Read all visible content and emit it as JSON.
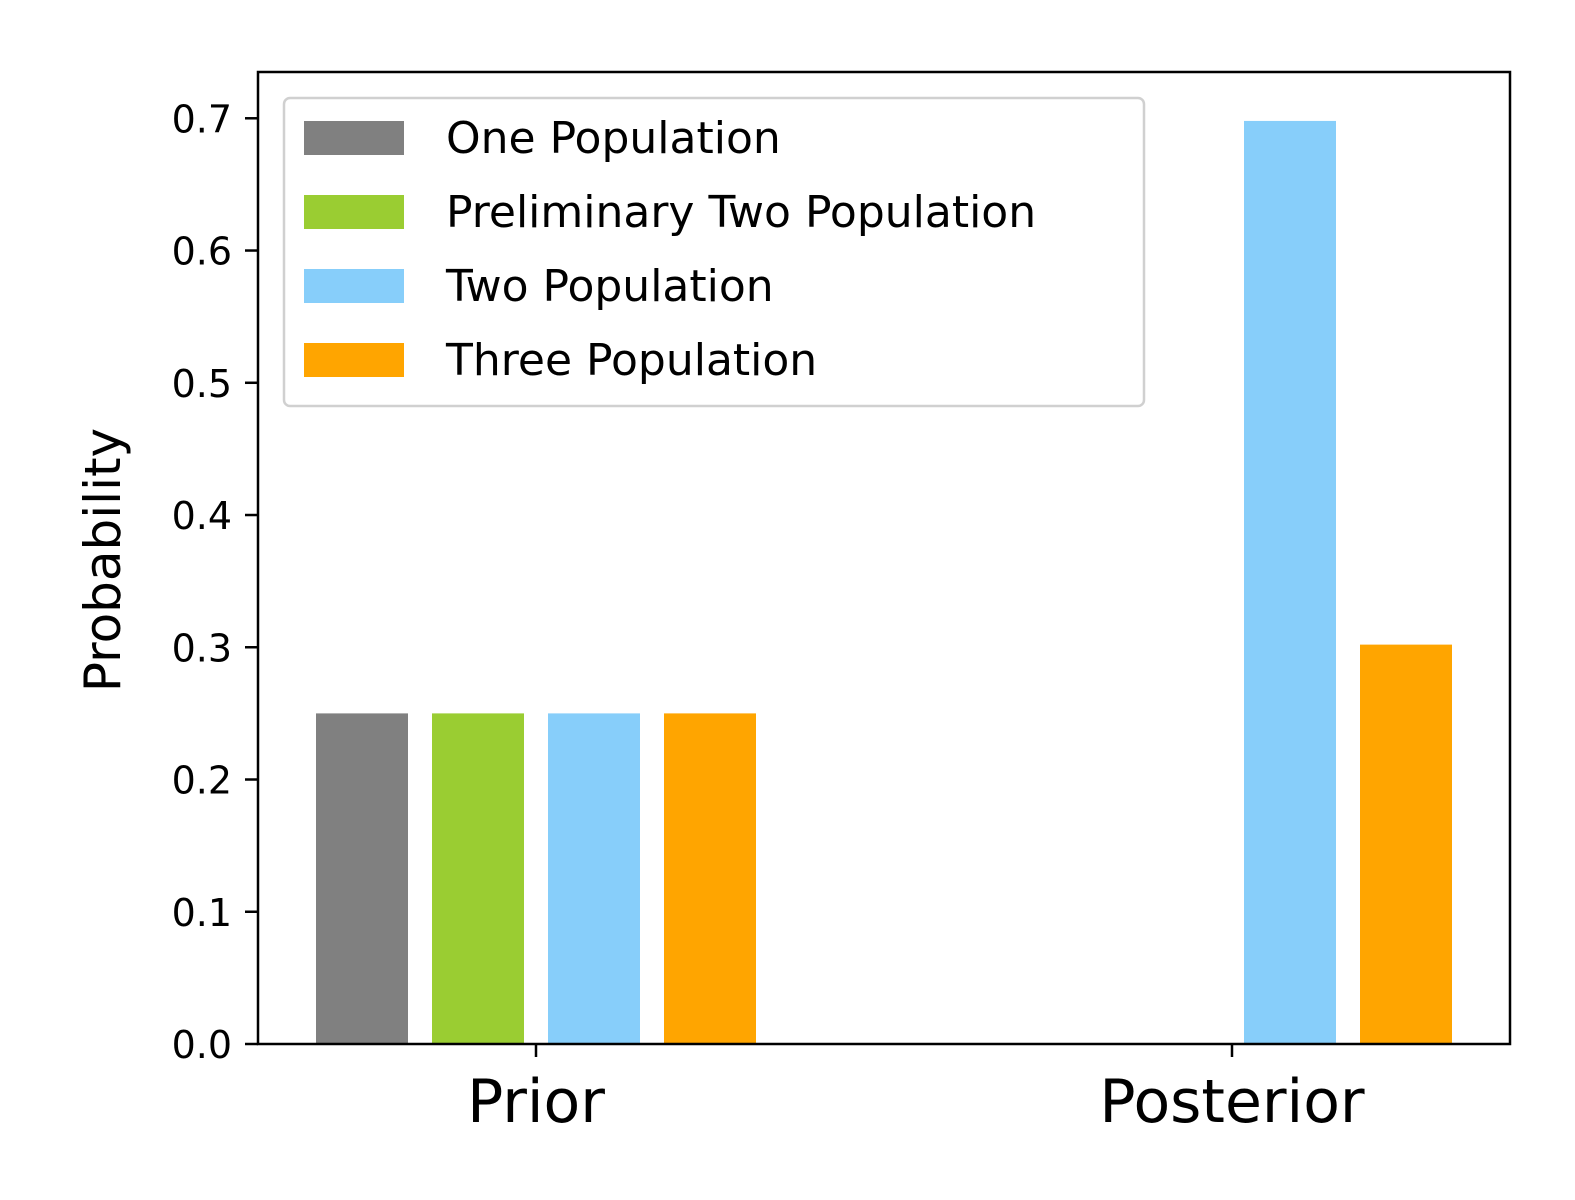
{
  "chart_data": {
    "type": "bar",
    "categories": [
      "Prior",
      "Posterior"
    ],
    "series": [
      {
        "name": "One Population",
        "color": "#808080",
        "values": [
          0.25,
          0.0
        ]
      },
      {
        "name": "Preliminary Two Population",
        "color": "#9acd32",
        "values": [
          0.25,
          0.0
        ]
      },
      {
        "name": "Two Population",
        "color": "#87cefa",
        "values": [
          0.25,
          0.698
        ]
      },
      {
        "name": "Three Population",
        "color": "#ffa500",
        "values": [
          0.25,
          0.302
        ]
      }
    ],
    "xlabel": "",
    "ylabel": "Probability",
    "ylim": [
      0,
      0.735
    ],
    "yticks": [
      0.0,
      0.1,
      0.2,
      0.3,
      0.4,
      0.5,
      0.6,
      0.7
    ],
    "ytick_labels": [
      "0.0",
      "0.1",
      "0.2",
      "0.3",
      "0.4",
      "0.5",
      "0.6",
      "0.7"
    ],
    "grid": false,
    "legend_position": "upper-left"
  }
}
